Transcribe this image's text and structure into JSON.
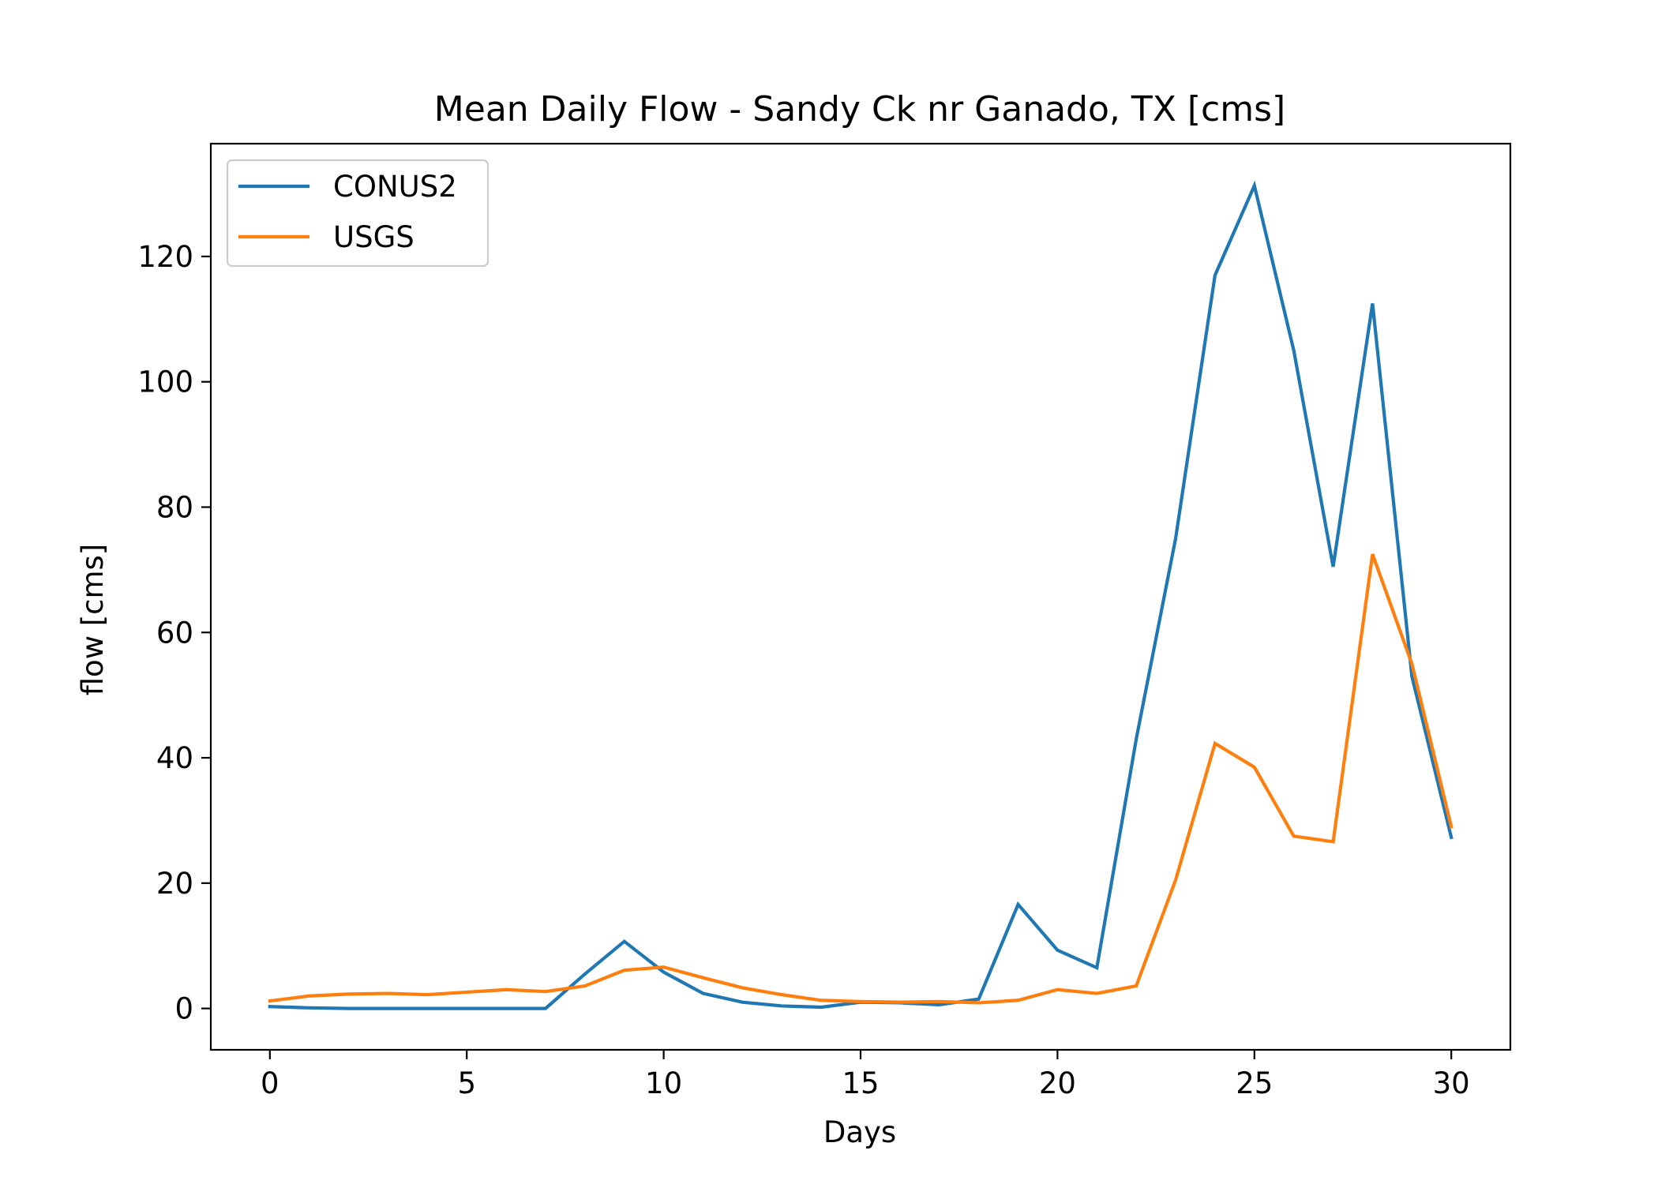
{
  "chart_data": {
    "type": "line",
    "title": "Mean Daily Flow - Sandy Ck nr Ganado, TX [cms]",
    "xlabel": "Days",
    "ylabel": "flow [cms]",
    "xlim": [
      -1.5,
      31.5
    ],
    "ylim": [
      -6.6,
      138.0
    ],
    "xticks": [
      0,
      5,
      10,
      15,
      20,
      25,
      30
    ],
    "yticks": [
      0,
      20,
      40,
      60,
      80,
      100,
      120
    ],
    "grid": false,
    "legend_position": "top-left",
    "x": [
      0,
      1,
      2,
      3,
      4,
      5,
      6,
      7,
      8,
      9,
      10,
      11,
      12,
      13,
      14,
      15,
      16,
      17,
      18,
      19,
      20,
      21,
      22,
      23,
      24,
      25,
      26,
      27,
      28,
      29,
      30
    ],
    "series": [
      {
        "name": "CONUS2",
        "color": "#1f77b4",
        "values": [
          0.3,
          0.1,
          0.0,
          0.0,
          0.0,
          0.0,
          0.0,
          0.0,
          5.5,
          10.7,
          5.8,
          2.4,
          1.0,
          0.4,
          0.2,
          1.0,
          0.9,
          0.6,
          1.5,
          16.6,
          9.3,
          6.5,
          43.0,
          75.0,
          117.0,
          131.3,
          105.0,
          70.5,
          112.5,
          53.0,
          27.3
        ]
      },
      {
        "name": "USGS",
        "color": "#ff7f0e",
        "values": [
          1.2,
          2.0,
          2.3,
          2.4,
          2.2,
          2.6,
          3.0,
          2.7,
          3.6,
          6.1,
          6.6,
          4.9,
          3.3,
          2.2,
          1.3,
          1.1,
          1.0,
          1.1,
          0.9,
          1.3,
          3.0,
          2.4,
          3.6,
          20.5,
          42.3,
          38.5,
          27.5,
          26.6,
          72.5,
          55.0,
          29.0
        ]
      }
    ]
  }
}
